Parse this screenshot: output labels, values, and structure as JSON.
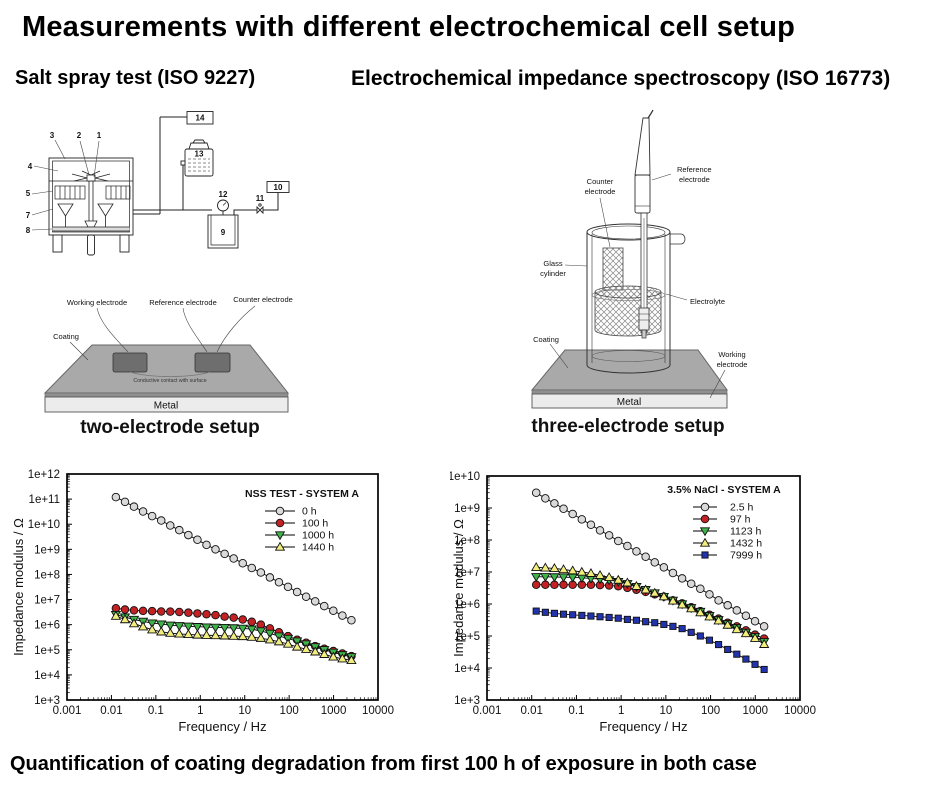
{
  "page": {
    "title": "Measurements with different electrochemical cell setup",
    "bottom_caption": "Quantification of coating degradation from first 100 h of exposure in both case"
  },
  "sections": {
    "left_heading": "Salt spray test (ISO 9227)",
    "right_heading": "Electrochemical impedance spectroscopy (ISO 16773)"
  },
  "salt_spray": {
    "numbers": {
      "n1": "1",
      "n2": "2",
      "n3": "3",
      "n4": "4",
      "n5": "5",
      "n7": "7",
      "n8": "8",
      "n9": "9",
      "n10": "10",
      "n11": "11",
      "n12": "12",
      "n13": "13",
      "n14": "14"
    }
  },
  "two_electrode": {
    "labels": {
      "working": "Working electrode",
      "reference": "Reference electrode",
      "counter": "Counter electrode",
      "coating": "Coating",
      "contact": "Conductive contact with surface",
      "metal": "Metal"
    },
    "caption": "two-electrode setup"
  },
  "three_electrode": {
    "labels": {
      "counter_1": "Counter",
      "counter_2": "electrode",
      "reference_1": "Reference",
      "reference_2": "electrode",
      "glass_1": "Glass",
      "glass_2": "cylinder",
      "electrolyte": "Electrolyte",
      "coating": "Coating",
      "working_1": "Working",
      "working_2": "electrode",
      "metal": "Metal"
    },
    "caption": "three-electrode setup"
  },
  "chart_data": [
    {
      "type": "line",
      "title": "NSS TEST - SYSTEM A",
      "xlabel": "Frequency / Hz",
      "ylabel": "Impedance modulus / Ω",
      "x_log_range": [
        -3,
        4
      ],
      "y_log_range": [
        3,
        12
      ],
      "x_tick_labels": [
        "0.001",
        "0.01",
        "0.1",
        "1",
        "10",
        "100",
        "1000",
        "10000"
      ],
      "y_tick_labels": [
        "1e+3",
        "1e+4",
        "1e+5",
        "1e+6",
        "1e+7",
        "1e+8",
        "1e+9",
        "1e+10",
        "1e+11",
        "1e+12"
      ],
      "x": [
        0.0126,
        0.0202,
        0.0322,
        0.0515,
        0.0824,
        0.132,
        0.211,
        0.337,
        0.539,
        0.862,
        1.38,
        2.2,
        3.53,
        5.64,
        9.02,
        14.4,
        23.1,
        36.9,
        59,
        94.4,
        151,
        241,
        386,
        617,
        987,
        1578,
        2524
      ],
      "series": [
        {
          "name": "0 h",
          "marker": "circle",
          "color": "#d9d9d9",
          "values": [
            120000000000.0,
            78000000000.0,
            50000000000.0,
            32000000000.0,
            21000000000.0,
            14000000000.0,
            8900000000.0,
            5800000000.0,
            3700000000.0,
            2400000000.0,
            1500000000.0,
            1000000000.0,
            660000000.0,
            430000000.0,
            280000000.0,
            180000000.0,
            120000000.0,
            76000000.0,
            49000000.0,
            32000000.0,
            20000000.0,
            13000000.0,
            8500000.0,
            5500000.0,
            3600000.0,
            2300000.0,
            1500000.0
          ]
        },
        {
          "name": "100 h",
          "marker": "circle",
          "color": "#c42125",
          "values": [
            4500000.0,
            4000000.0,
            3700000.0,
            3550000.0,
            3450000.0,
            3350000.0,
            3300000.0,
            3200000.0,
            3000000.0,
            2800000.0,
            2600000.0,
            2400000.0,
            2100000.0,
            1900000.0,
            1600000.0,
            1300000.0,
            1000000.0,
            710000.0,
            500000.0,
            350000.0,
            250000.0,
            190000.0,
            140000.0,
            110000.0,
            89000.0,
            71000.0,
            56000.0
          ]
        },
        {
          "name": "1000 h",
          "marker": "triangle-down",
          "color": "#3db34a",
          "values": [
            2500000.0,
            2000000.0,
            1600000.0,
            1350000.0,
            1150000.0,
            1050000.0,
            950000.0,
            900000.0,
            860000.0,
            830000.0,
            800000.0,
            780000.0,
            760000.0,
            740000.0,
            710000.0,
            660000.0,
            560000.0,
            450000.0,
            350000.0,
            280000.0,
            220000.0,
            170000.0,
            130000.0,
            100000.0,
            79000.0,
            63000.0,
            52000.0
          ]
        },
        {
          "name": "1440 h",
          "marker": "triangle-up",
          "color": "#f2ee7d",
          "values": [
            2200000.0,
            1600000.0,
            1100000.0,
            830000.0,
            630000.0,
            520000.0,
            460000.0,
            430000.0,
            410000.0,
            390000.0,
            380000.0,
            370000.0,
            360000.0,
            350000.0,
            340000.0,
            320000.0,
            290000.0,
            250000.0,
            210000.0,
            170000.0,
            130000.0,
            105000.0,
            83000.0,
            66000.0,
            52000.0,
            44000.0,
            38000.0
          ]
        }
      ]
    },
    {
      "type": "line",
      "title": "3.5% NaCl - SYSTEM A",
      "xlabel": "Frequency / Hz",
      "ylabel": "Impedance modulus / Ω",
      "x_log_range": [
        -3,
        4
      ],
      "y_log_range": [
        3,
        10
      ],
      "x_tick_labels": [
        "0.001",
        "0.01",
        "0.1",
        "1",
        "10",
        "100",
        "1000",
        "10000"
      ],
      "y_tick_labels": [
        "1e+3",
        "1e+4",
        "1e+5",
        "1e+6",
        "1e+7",
        "1e+8",
        "1e+9",
        "1e+10"
      ],
      "x": [
        0.0126,
        0.0202,
        0.0322,
        0.0515,
        0.0824,
        0.132,
        0.211,
        0.337,
        0.539,
        0.862,
        1.38,
        2.2,
        3.53,
        5.64,
        9.02,
        14.4,
        23.1,
        36.9,
        59,
        94.4,
        151,
        241,
        386,
        617,
        987,
        1578
      ],
      "series": [
        {
          "name": "2.5 h",
          "marker": "circle",
          "color": "#d9d9d9",
          "values": [
            3000000000.0,
            2000000000.0,
            1400000000.0,
            950000000.0,
            650000000.0,
            440000000.0,
            300000000.0,
            200000000.0,
            140000000.0,
            93000000.0,
            65000000.0,
            44000000.0,
            30000000.0,
            20000000.0,
            14000000.0,
            9300000.0,
            6300000.0,
            4300000.0,
            3000000.0,
            2000000.0,
            1300000.0,
            910000.0,
            630000.0,
            430000.0,
            290000.0,
            200000.0
          ]
        },
        {
          "name": "97 h",
          "marker": "circle",
          "color": "#c42125",
          "values": [
            4000000.0,
            4000000.0,
            4000000.0,
            4000000.0,
            4000000.0,
            4000000.0,
            4000000.0,
            3900000.0,
            3800000.0,
            3600000.0,
            3200000.0,
            2800000.0,
            2400000.0,
            2000000.0,
            1700000.0,
            1300000.0,
            1050000.0,
            790000.0,
            600000.0,
            460000.0,
            350000.0,
            260000.0,
            200000.0,
            150000.0,
            110000.0,
            83000.0
          ]
        },
        {
          "name": "1123 h",
          "marker": "triangle-down",
          "color": "#3db34a",
          "values": [
            7100000.0,
            7100000.0,
            7000000.0,
            6900000.0,
            6800000.0,
            6600000.0,
            6300000.0,
            6000000.0,
            5600000.0,
            5000000.0,
            4300000.0,
            3500000.0,
            2800000.0,
            2200000.0,
            1700000.0,
            1300000.0,
            1000000.0,
            760000.0,
            580000.0,
            430000.0,
            320000.0,
            240000.0,
            180000.0,
            130000.0,
            95000.0,
            66000.0
          ]
        },
        {
          "name": "1432 h",
          "marker": "triangle-up",
          "color": "#f2ee7d",
          "values": [
            14000000.0,
            13500000.0,
            13000000.0,
            12000000.0,
            11000000.0,
            10000000.0,
            9100000.0,
            7900000.0,
            6800000.0,
            5600000.0,
            4600000.0,
            3600000.0,
            2800000.0,
            2200000.0,
            1700000.0,
            1250000.0,
            950000.0,
            720000.0,
            540000.0,
            400000.0,
            300000.0,
            220000.0,
            160000.0,
            120000.0,
            85000.0,
            55000.0
          ]
        },
        {
          "name": "7999 h",
          "marker": "square",
          "color": "#2333ae",
          "values": [
            600000.0,
            550000.0,
            510000.0,
            480000.0,
            460000.0,
            440000.0,
            420000.0,
            400000.0,
            380000.0,
            360000.0,
            330000.0,
            310000.0,
            280000.0,
            260000.0,
            230000.0,
            200000.0,
            170000.0,
            130000.0,
            100000.0,
            74000.0,
            54000.0,
            38000.0,
            27000.0,
            19000.0,
            13000.0,
            9000.0
          ]
        }
      ]
    }
  ]
}
